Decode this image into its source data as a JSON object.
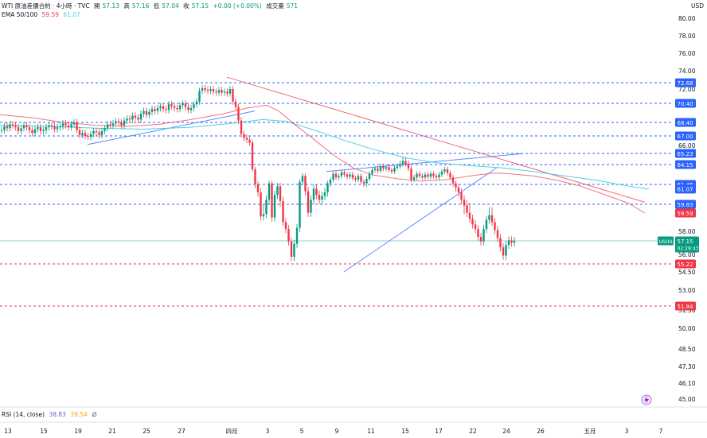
{
  "header": {
    "symbol": "WTI 原油差價合約 · 4小時 · TVC",
    "open_label": "開",
    "open": "57.13",
    "high_label": "高",
    "high": "57.16",
    "low_label": "低",
    "low": "57.04",
    "close_label": "收",
    "close": "57.15",
    "change": "+0.00 (+0.00%)",
    "volume_label": "成交量",
    "volume": "571",
    "ema_label": "EMA 50/100",
    "ema50": "59.59",
    "ema100": "61.07",
    "rsi_label": "RSI (14, close)",
    "rsi1": "38.83",
    "rsi2": "39.54",
    "rsi3": "∅"
  },
  "currency": "USD",
  "price_tags": [
    {
      "value": 72.68,
      "label": "72.68",
      "color": "#2962ff"
    },
    {
      "value": 70.4,
      "label": "70.40",
      "color": "#2962ff"
    },
    {
      "value": 68.4,
      "label": "68.40",
      "color": "#2962ff"
    },
    {
      "value": 67.0,
      "label": "67.00",
      "color": "#2962ff"
    },
    {
      "value": 65.23,
      "label": "65.23",
      "color": "#2962ff"
    },
    {
      "value": 64.15,
      "label": "64.15",
      "color": "#2962ff"
    },
    {
      "value": 61.45,
      "label": "61.45",
      "color": "#2962ff"
    },
    {
      "value": 61.07,
      "label": "61.07",
      "color": "#2962ff"
    },
    {
      "value": 59.83,
      "label": "59.83",
      "color": "#2962ff"
    },
    {
      "value": 59.59,
      "label": "59.59",
      "color": "#f23645"
    },
    {
      "value": 55.22,
      "label": "55.22",
      "color": "#f23645"
    },
    {
      "value": 51.84,
      "label": "51.84",
      "color": "#f23645"
    }
  ],
  "current_tag": {
    "symbol": "USOIL",
    "price": "57.15",
    "countdown": "02:29:43",
    "value": 57.15,
    "color": "#089981"
  },
  "chart_data": {
    "type": "candlestick",
    "x_ticks": [
      "13",
      "15",
      "19",
      "21",
      "25",
      "27",
      "四月",
      "3",
      "5",
      "9",
      "11",
      "15",
      "17",
      "22",
      "24",
      "26",
      "五月",
      "3",
      "7"
    ],
    "y_ticks": [
      80.0,
      78.0,
      76.0,
      74.0,
      72.0,
      66.0,
      58.0,
      56.0,
      54.5,
      53.0,
      51.5,
      50.0,
      48.5,
      47.3,
      46.1,
      45.0
    ],
    "ylim": [
      44.5,
      81.5
    ],
    "h_lines": [
      {
        "value": 72.68,
        "color": "#2962ff"
      },
      {
        "value": 70.4,
        "color": "#2962ff"
      },
      {
        "value": 68.4,
        "color": "#2962ff"
      },
      {
        "value": 67.0,
        "color": "#2962ff"
      },
      {
        "value": 65.23,
        "color": "#2962ff"
      },
      {
        "value": 64.15,
        "color": "#2962ff"
      },
      {
        "value": 61.45,
        "color": "#2962ff"
      },
      {
        "value": 59.83,
        "color": "#2962ff"
      },
      {
        "value": 55.22,
        "color": "#f23645"
      },
      {
        "value": 51.84,
        "color": "#f23645"
      }
    ],
    "trend_lines": [
      {
        "from": [
          110,
          66.1
        ],
        "to": [
          320,
          69.6
        ],
        "color": "#2962ff"
      },
      {
        "from": [
          410,
          63.2
        ],
        "to": [
          655,
          65.2
        ],
        "color": "#2962ff"
      },
      {
        "from": [
          432,
          54.5
        ],
        "to": [
          625,
          63.8
        ],
        "color": "#2962ff"
      },
      {
        "from": [
          285,
          73.3
        ],
        "to": [
          810,
          60.0
        ],
        "color": "#f23645"
      }
    ],
    "ema50": [
      [
        0,
        69.2
      ],
      [
        40,
        68.9
      ],
      [
        80,
        68.4
      ],
      [
        120,
        68.1
      ],
      [
        160,
        68.0
      ],
      [
        200,
        68.2
      ],
      [
        240,
        68.7
      ],
      [
        280,
        69.3
      ],
      [
        310,
        69.9
      ],
      [
        335,
        70.2
      ],
      [
        350,
        69.6
      ],
      [
        370,
        68.2
      ],
      [
        395,
        66.6
      ],
      [
        420,
        65.0
      ],
      [
        445,
        63.6
      ],
      [
        470,
        62.7
      ],
      [
        500,
        62.2
      ],
      [
        530,
        61.9
      ],
      [
        560,
        62.1
      ],
      [
        590,
        62.6
      ],
      [
        620,
        63.0
      ],
      [
        640,
        62.9
      ],
      [
        670,
        62.6
      ],
      [
        700,
        62.0
      ],
      [
        730,
        61.3
      ],
      [
        760,
        60.6
      ],
      [
        790,
        59.9
      ],
      [
        810,
        59.59
      ]
    ],
    "ema100": [
      [
        0,
        68.1
      ],
      [
        60,
        68.0
      ],
      [
        120,
        67.8
      ],
      [
        180,
        67.7
      ],
      [
        240,
        67.9
      ],
      [
        290,
        68.3
      ],
      [
        330,
        68.7
      ],
      [
        360,
        68.5
      ],
      [
        395,
        67.6
      ],
      [
        430,
        66.6
      ],
      [
        470,
        65.6
      ],
      [
        510,
        64.8
      ],
      [
        550,
        64.3
      ],
      [
        590,
        64.0
      ],
      [
        630,
        63.7
      ],
      [
        670,
        63.2
      ],
      [
        710,
        62.6
      ],
      [
        750,
        62.0
      ],
      [
        790,
        61.3
      ],
      [
        815,
        61.07
      ]
    ],
    "candles": {
      "x_start": 2,
      "spacing": 3.5,
      "closes": [
        67.6,
        68.0,
        67.8,
        68.2,
        68.1,
        67.9,
        67.5,
        67.8,
        68.1,
        67.9,
        67.6,
        67.3,
        67.7,
        67.9,
        67.5,
        67.6,
        67.9,
        68.1,
        68.0,
        67.7,
        67.9,
        68.0,
        68.3,
        68.1,
        67.9,
        68.2,
        68.4,
        67.6,
        67.1,
        67.3,
        67.0,
        66.9,
        67.2,
        67.5,
        67.4,
        67.1,
        67.5,
        67.8,
        68.2,
        68.1,
        68.3,
        68.5,
        68.4,
        68.1,
        68.6,
        68.8,
        68.7,
        69.1,
        68.9,
        68.7,
        69.3,
        69.6,
        69.2,
        69.5,
        69.8,
        69.6,
        69.9,
        70.1,
        69.8,
        69.7,
        70.3,
        70.1,
        69.9,
        69.8,
        70.2,
        70.4,
        70.0,
        69.7,
        69.9,
        70.3,
        70.6,
        71.8,
        72.1,
        71.9,
        71.8,
        72.0,
        71.7,
        71.6,
        71.9,
        71.6,
        71.7,
        71.5,
        72.0,
        70.6,
        70.0,
        68.6,
        67.2,
        66.8,
        66.6,
        66.3,
        63.5,
        61.5,
        60.8,
        59.3,
        59.5,
        60.2,
        61.6,
        59.2,
        60.6,
        61.3,
        60.1,
        58.8,
        58.2,
        57.1,
        55.8,
        56.9,
        58.3,
        61.8,
        62.6,
        60.9,
        59.6,
        60.2,
        61.1,
        60.6,
        60.2,
        60.5,
        60.8,
        61.6,
        62.1,
        62.9,
        62.4,
        62.6,
        63.1,
        62.8,
        62.5,
        62.8,
        62.3,
        62.1,
        62.6,
        61.8,
        61.6,
        62.2,
        62.9,
        63.4,
        63.6,
        63.3,
        63.9,
        63.6,
        63.8,
        63.4,
        63.2,
        63.7,
        63.9,
        64.2,
        64.5,
        64.2,
        63.6,
        62.1,
        62.4,
        62.9,
        62.6,
        62.4,
        62.8,
        62.5,
        62.9,
        62.6,
        62.4,
        62.8,
        63.2,
        63.5,
        63.0,
        62.4,
        61.6,
        61.2,
        60.8,
        60.2,
        59.8,
        59.6,
        59.1,
        58.6,
        58.2,
        57.5,
        57.1,
        58.2,
        59.0,
        59.4,
        58.8,
        58.1,
        57.4,
        56.6,
        55.9,
        56.8,
        57.2,
        57.0,
        57.15
      ]
    }
  }
}
